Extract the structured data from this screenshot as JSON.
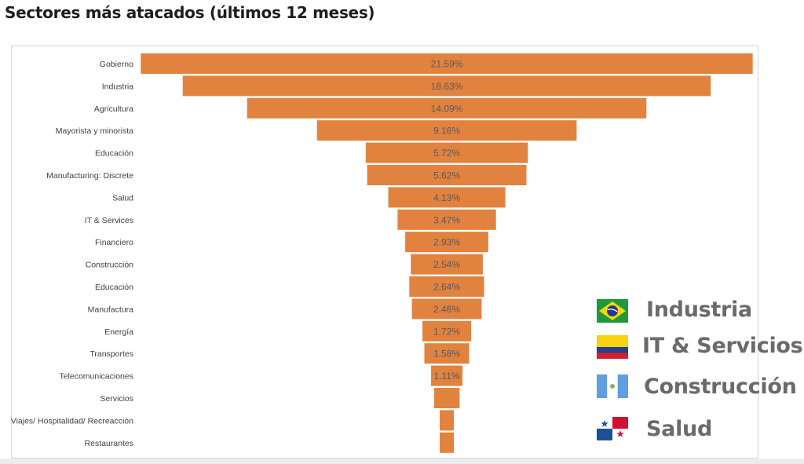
{
  "title": "Sectores más atacados (últimos 12 meses)",
  "chart_data": {
    "type": "bar",
    "orientation": "horizontal-funnel",
    "categories": [
      "Gobierno",
      "Industria",
      "Agricultura",
      "Mayorista y minorista",
      "Educación",
      "Manufacturing: Discrete",
      "Salud",
      "IT & Services",
      "Financiero",
      "Construcción",
      "Educación",
      "Manufactura",
      "Energía",
      "Transportes",
      "Telecomunicaciones",
      "Servicios",
      "Viajes/ Hospitalidad/ Recreacción",
      "Restaurantes"
    ],
    "values": [
      21.59,
      18.63,
      14.09,
      9.16,
      5.72,
      5.62,
      4.13,
      3.47,
      2.93,
      2.54,
      2.64,
      2.46,
      1.72,
      1.58,
      1.11,
      0.9,
      0.5,
      0.5
    ],
    "labels": [
      "21.59%",
      "18.63%",
      "14.09%",
      "9.16%",
      "5.72%",
      "5.62%",
      "4.13%",
      "3.47%",
      "2.93%",
      "2.54%",
      "2.64%",
      "2.46%",
      "1.72%",
      "1.58%",
      "1.11%",
      "",
      "",
      ""
    ],
    "bar_color": "#e2823f",
    "label_color": "#5a5a5a",
    "grid": false
  },
  "legend": [
    {
      "flag": "brazil-flag",
      "label": "Industria"
    },
    {
      "flag": "colombia-flag",
      "label": "IT & Servicios"
    },
    {
      "flag": "guatemala-flag",
      "label": "Construcción"
    },
    {
      "flag": "panama-flag",
      "label": "Salud"
    }
  ]
}
